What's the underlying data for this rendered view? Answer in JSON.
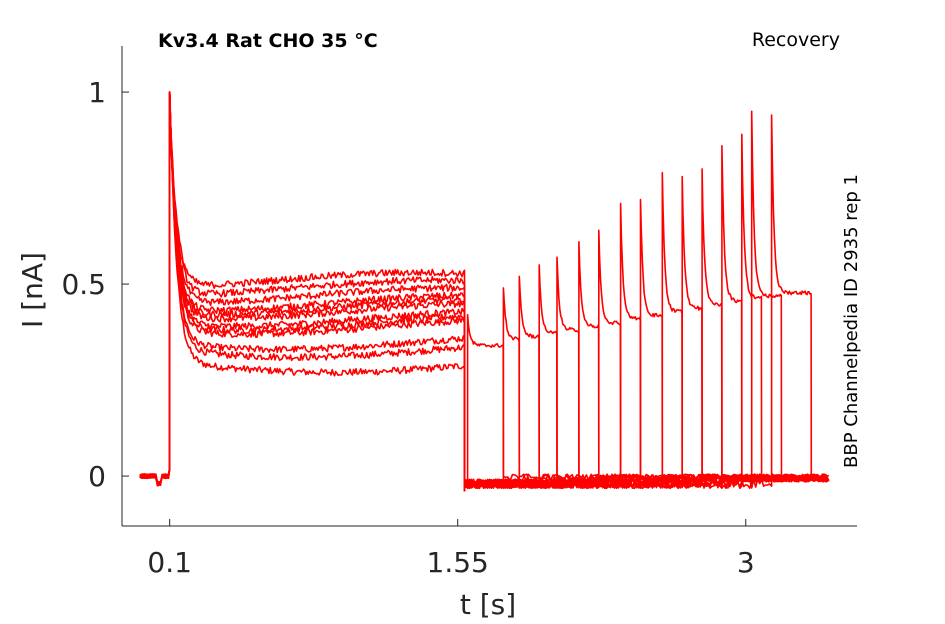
{
  "chart_data": {
    "type": "line",
    "title": "Kv3.4  Rat  CHO  35 °C",
    "subtitle": "Recovery",
    "side_label": "BBP Channelpedia ID 2935 rep 1",
    "xlabel": "t [s]",
    "ylabel": "I [nA]",
    "xlim": [
      -0.14,
      3.56
    ],
    "ylim": [
      -0.13,
      1.12
    ],
    "xticks": [
      0.1,
      1.55,
      3
    ],
    "xtick_labels": [
      "0.1",
      "1.55",
      "3"
    ],
    "yticks": [
      0,
      0.5,
      1
    ],
    "ytick_labels": [
      "0",
      "0.5",
      "1"
    ],
    "grid": false,
    "line_color": "#ff0000",
    "steady_levels": [
      0.29,
      0.33,
      0.35,
      0.39,
      0.4,
      0.41,
      0.43,
      0.44,
      0.45,
      0.47,
      0.49,
      0.51
    ],
    "test_pulses": [
      {
        "t": 1.6,
        "peak": 0.42,
        "end": 1.78
      },
      {
        "t": 1.78,
        "peak": 0.49,
        "end": 1.86
      },
      {
        "t": 1.86,
        "peak": 0.52,
        "end": 1.96
      },
      {
        "t": 1.96,
        "peak": 0.55,
        "end": 2.05
      },
      {
        "t": 2.05,
        "peak": 0.57,
        "end": 2.16
      },
      {
        "t": 2.16,
        "peak": 0.61,
        "end": 2.26
      },
      {
        "t": 2.26,
        "peak": 0.64,
        "end": 2.37
      },
      {
        "t": 2.37,
        "peak": 0.71,
        "end": 2.47
      },
      {
        "t": 2.47,
        "peak": 0.72,
        "end": 2.58
      },
      {
        "t": 2.58,
        "peak": 0.79,
        "end": 2.68
      },
      {
        "t": 2.68,
        "peak": 0.78,
        "end": 2.78
      },
      {
        "t": 2.78,
        "peak": 0.8,
        "end": 2.88
      },
      {
        "t": 2.88,
        "peak": 0.86,
        "end": 2.98
      },
      {
        "t": 2.98,
        "peak": 0.89,
        "end": 3.08
      },
      {
        "t": 3.03,
        "peak": 0.95,
        "end": 3.18
      },
      {
        "t": 3.13,
        "peak": 0.94,
        "end": 3.33
      }
    ]
  }
}
